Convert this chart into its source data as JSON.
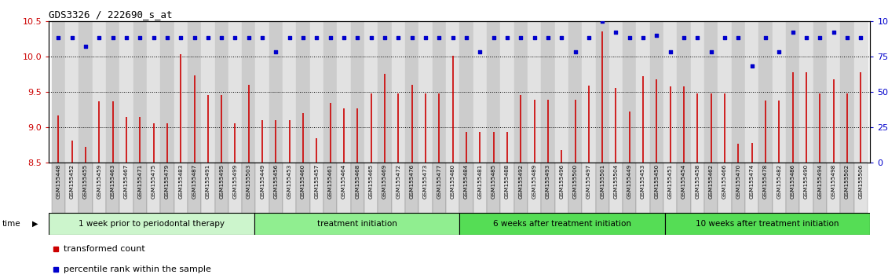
{
  "title": "GDS3326 / 222690_s_at",
  "samples": [
    "GSM155448",
    "GSM155452",
    "GSM155455",
    "GSM155459",
    "GSM155463",
    "GSM155467",
    "GSM155471",
    "GSM155475",
    "GSM155479",
    "GSM155483",
    "GSM155487",
    "GSM155491",
    "GSM155495",
    "GSM155499",
    "GSM155503",
    "GSM155449",
    "GSM155456",
    "GSM155453",
    "GSM155460",
    "GSM155457",
    "GSM155461",
    "GSM155464",
    "GSM155468",
    "GSM155465",
    "GSM155469",
    "GSM155472",
    "GSM155476",
    "GSM155473",
    "GSM155477",
    "GSM155480",
    "GSM155484",
    "GSM155481",
    "GSM155485",
    "GSM155488",
    "GSM155492",
    "GSM155489",
    "GSM155493",
    "GSM155496",
    "GSM155500",
    "GSM155497",
    "GSM155501",
    "GSM155504",
    "GSM155449",
    "GSM155453",
    "GSM155450",
    "GSM155451",
    "GSM155454",
    "GSM155458",
    "GSM155462",
    "GSM155466",
    "GSM155470",
    "GSM155474",
    "GSM155478",
    "GSM155482",
    "GSM155486",
    "GSM155490",
    "GSM155494",
    "GSM155498",
    "GSM155502",
    "GSM155506"
  ],
  "bar_values": [
    9.17,
    8.81,
    8.72,
    9.37,
    9.37,
    9.14,
    9.14,
    9.05,
    9.05,
    10.03,
    9.73,
    9.45,
    9.45,
    9.05,
    9.6,
    9.1,
    9.1,
    9.1,
    9.2,
    8.84,
    9.34,
    9.26,
    9.26,
    9.48,
    9.75,
    9.48,
    9.6,
    9.48,
    9.48,
    10.01,
    8.93,
    8.93,
    8.93,
    8.93,
    9.45,
    9.39,
    9.39,
    8.68,
    9.39,
    9.59,
    10.35,
    9.55,
    9.22,
    9.72,
    9.68,
    9.58,
    9.58,
    9.48,
    9.48,
    9.48,
    8.77,
    8.78,
    9.38,
    9.38,
    9.78,
    9.78,
    9.48,
    9.68,
    9.48,
    9.78
  ],
  "percentile_values": [
    88,
    88,
    82,
    88,
    88,
    88,
    88,
    88,
    88,
    88,
    88,
    88,
    88,
    88,
    88,
    88,
    78,
    88,
    88,
    88,
    88,
    88,
    88,
    88,
    88,
    88,
    88,
    88,
    88,
    88,
    88,
    78,
    88,
    88,
    88,
    88,
    88,
    88,
    78,
    88,
    100,
    92,
    88,
    88,
    90,
    78,
    88,
    88,
    78,
    88,
    88,
    68,
    88,
    78,
    92,
    88,
    88,
    92,
    88,
    88
  ],
  "ylim_left": [
    8.5,
    10.5
  ],
  "ylim_right": [
    0,
    100
  ],
  "yticks_left": [
    8.5,
    9.0,
    9.5,
    10.0,
    10.5
  ],
  "yticks_right": [
    0,
    25,
    50,
    75,
    100
  ],
  "bar_color": "#cc0000",
  "dot_color": "#0000cc",
  "baseline": 8.5,
  "groups": [
    {
      "label": "1 week prior to periodontal therapy",
      "start": 0,
      "end": 15,
      "color": "#ccf0cc"
    },
    {
      "label": "treatment initiation",
      "start": 15,
      "end": 30,
      "color": "#90ee90"
    },
    {
      "label": "6 weeks after treatment initiation",
      "start": 30,
      "end": 45,
      "color": "#44dd44"
    },
    {
      "label": "10 weeks after treatment initiation",
      "start": 45,
      "end": 60,
      "color": "#44dd44"
    }
  ],
  "tick_bg_even": "#cccccc",
  "tick_bg_odd": "#e2e2e2"
}
